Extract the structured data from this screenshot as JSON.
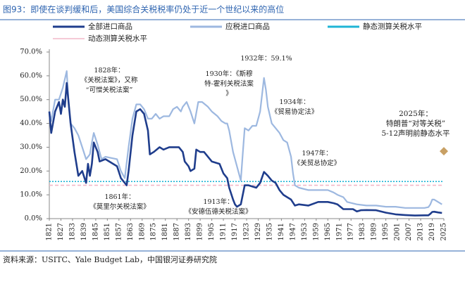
{
  "chart_data": {
    "type": "line",
    "title": "图93：即使在谈判缓和后，美国综合关税税率仍处于近一个世纪以来的高位",
    "source": "资料来源：USITC、Yale Budget Lab，中国银河证券研究院",
    "ylim": [
      0,
      70
    ],
    "yticks": [
      {
        "value": 0,
        "label": "0.0%"
      },
      {
        "value": 10,
        "label": "10.0%"
      },
      {
        "value": 20,
        "label": "20.0%"
      },
      {
        "value": 30,
        "label": "30.0%"
      },
      {
        "value": 40,
        "label": "40.0%"
      },
      {
        "value": 50,
        "label": "50.0%"
      },
      {
        "value": 60,
        "label": "60.0%"
      },
      {
        "value": 70,
        "label": "70.0%"
      }
    ],
    "xlim": [
      1821,
      2025
    ],
    "xticks": [
      1821,
      1827,
      1833,
      1839,
      1845,
      1851,
      1857,
      1863,
      1869,
      1875,
      1881,
      1887,
      1893,
      1899,
      1905,
      1911,
      1917,
      1923,
      1929,
      1935,
      1941,
      1947,
      1953,
      1959,
      1965,
      1971,
      1977,
      1983,
      1989,
      1995,
      2001,
      2007,
      2013,
      2019,
      2025
    ],
    "series": [
      {
        "name": "全部进口商品",
        "color": "#1f3d8c",
        "x": [
          1821,
          1822,
          1824,
          1826,
          1827,
          1828,
          1829,
          1830,
          1832,
          1834,
          1836,
          1838,
          1840,
          1841,
          1842,
          1843,
          1844,
          1846,
          1847,
          1850,
          1856,
          1858,
          1860,
          1861,
          1862,
          1864,
          1866,
          1868,
          1870,
          1872,
          1873,
          1875,
          1878,
          1880,
          1883,
          1885,
          1888,
          1890,
          1891,
          1893,
          1894,
          1896,
          1897,
          1899,
          1901,
          1905,
          1909,
          1911,
          1913,
          1914,
          1916,
          1917,
          1918,
          1920,
          1922,
          1924,
          1928,
          1930,
          1932,
          1934,
          1936,
          1938,
          1940,
          1942,
          1944,
          1946,
          1948,
          1950,
          1955,
          1960,
          1965,
          1968,
          1970,
          1973,
          1975,
          1978,
          1980,
          1982,
          1985,
          1990,
          1995,
          2000,
          2005,
          2010,
          2015,
          2017,
          2018,
          2019,
          2020,
          2022,
          2024
        ],
        "values": [
          45,
          36,
          45,
          49,
          44,
          50,
          47,
          57,
          40,
          28,
          18,
          20,
          15,
          23,
          18,
          23,
          32,
          28,
          24,
          25,
          22,
          17,
          15,
          14,
          20,
          35,
          45,
          46,
          44,
          37,
          27,
          28,
          30,
          29,
          30,
          30,
          30,
          28,
          24,
          22,
          20,
          21,
          29,
          28,
          28,
          24,
          23,
          19,
          17,
          13,
          8,
          6,
          5,
          6,
          14,
          14,
          13,
          15,
          19.6,
          18,
          16,
          15,
          12,
          10,
          9,
          8,
          5.5,
          6,
          5.5,
          7,
          7,
          6.5,
          6,
          4,
          4,
          4,
          3,
          3.5,
          3.6,
          3.5,
          2.5,
          1.8,
          1.5,
          1.3,
          1.4,
          1.4,
          2,
          2.8,
          2.9,
          2.6,
          2.4
        ]
      },
      {
        "name": "应税进口商品",
        "color": "#9db8e0",
        "x": [
          1821,
          1822,
          1824,
          1826,
          1828,
          1830,
          1831,
          1832,
          1834,
          1836,
          1838,
          1840,
          1842,
          1843,
          1844,
          1846,
          1848,
          1850,
          1856,
          1858,
          1860,
          1862,
          1864,
          1866,
          1868,
          1870,
          1872,
          1874,
          1876,
          1878,
          1880,
          1883,
          1885,
          1887,
          1889,
          1890,
          1892,
          1894,
          1896,
          1898,
          1900,
          1903,
          1905,
          1908,
          1910,
          1912,
          1913,
          1914,
          1916,
          1918,
          1920,
          1921,
          1922,
          1924,
          1926,
          1928,
          1930,
          1932,
          1933,
          1934,
          1936,
          1938,
          1940,
          1942,
          1944,
          1946,
          1947,
          1948,
          1950,
          1955,
          1960,
          1965,
          1968,
          1970,
          1973,
          1975,
          1980,
          1985,
          1990,
          1995,
          2000,
          2005,
          2010,
          2015,
          2017,
          2018,
          2019,
          2020,
          2022,
          2024
        ],
        "values": [
          45,
          41,
          50,
          50,
          55,
          62,
          48,
          40,
          38,
          35,
          30,
          25,
          27,
          32,
          36,
          31,
          25,
          26,
          25,
          20,
          17,
          30,
          42,
          48,
          48,
          46,
          42,
          42,
          44,
          42,
          43,
          43,
          46,
          47,
          45,
          47,
          49,
          45,
          40,
          49,
          49,
          47,
          45,
          43,
          41,
          40,
          40,
          37,
          28,
          22,
          16,
          27,
          38,
          37,
          39,
          39,
          45,
          59.1,
          54,
          47,
          40,
          38,
          36,
          33,
          32,
          26,
          19,
          14,
          13,
          12,
          12,
          12,
          11,
          10,
          9,
          7,
          6,
          5.5,
          5.5,
          5,
          5,
          4.5,
          4.5,
          4.5,
          4.8,
          6,
          8,
          8,
          7,
          6
        ]
      }
    ],
    "reference_lines": [
      {
        "name": "静态测算关税水平",
        "color": "#1fb5d6",
        "value": 15.6,
        "dash": "dotted"
      },
      {
        "name": "动态测算关税水平",
        "color": "#f2b8c8",
        "value": 14,
        "dash": "dashed"
      }
    ],
    "marker": {
      "x": 2025,
      "value": 28.3,
      "color": "#c8a064"
    },
    "annotations": [
      [
        "1828年：",
        "《关税法案》，又称",
        "“可憎关税法案”"
      ],
      [
        "1930年：《斯穆",
        "特-霍利关税法案",
        "》"
      ],
      [
        "1932年：59.1%"
      ],
      [
        "1934年：",
        "《贸易协定法》"
      ],
      [
        "1947年：",
        "《关贸总协定》"
      ],
      [
        "1861年：",
        "《莫里尔关税法案》"
      ],
      [
        "1913年：",
        "《安德伍德关税法案》"
      ],
      [
        "2025年：",
        "特朗普“对等关税”",
        "5-12声明前静态水平"
      ]
    ]
  }
}
